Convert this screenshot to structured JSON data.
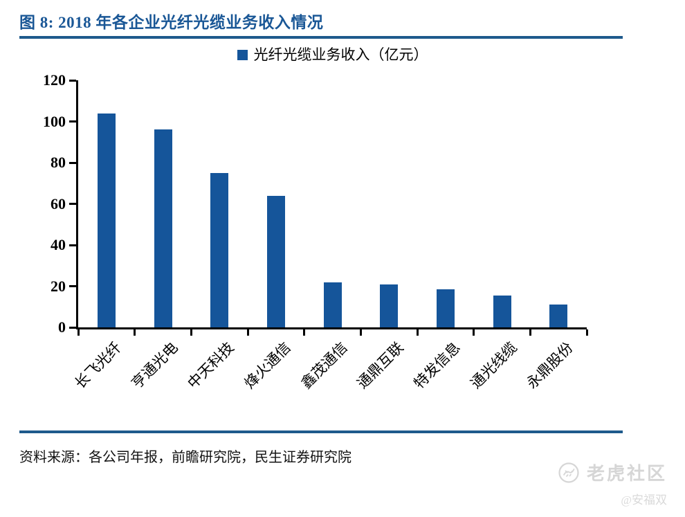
{
  "figure": {
    "title": "图 8: 2018 年各企业光纤光缆业务收入情况",
    "source": "资料来源：各公司年报，前瞻研究院，民生证券研究院"
  },
  "legend": {
    "label": "光纤光缆业务收入（亿元）"
  },
  "chart_data": {
    "type": "bar",
    "title": "2018 年各企业光纤光缆业务收入情况",
    "series_name": "光纤光缆业务收入（亿元）",
    "categories": [
      "长飞光纤",
      "亨通光电",
      "中天科技",
      "烽火通信",
      "鑫茂通信",
      "通鼎互联",
      "特发信息",
      "通光线缆",
      "永鼎股份"
    ],
    "values": [
      104,
      96,
      75,
      64,
      22,
      21,
      18.5,
      15.5,
      11
    ],
    "xlabel": "",
    "ylabel": "",
    "ylim": [
      0,
      120
    ],
    "yticks": [
      0,
      20,
      40,
      60,
      80,
      100,
      120
    ],
    "grid": false,
    "legend_position": "top",
    "bar_color": "#15559a"
  },
  "watermark": {
    "brand": "老虎社区",
    "handle": "@安福双"
  },
  "colors": {
    "accent_blue": "#15559a",
    "title_blue": "#1a5796",
    "rule_blue": "#1e5a8c",
    "axis_black": "#000000",
    "watermark_gray": "#d6d6d6"
  }
}
